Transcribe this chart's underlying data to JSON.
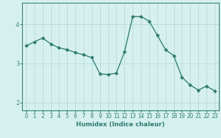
{
  "x": [
    0,
    1,
    2,
    3,
    4,
    5,
    6,
    7,
    8,
    9,
    10,
    11,
    12,
    13,
    14,
    15,
    16,
    17,
    18,
    19,
    20,
    21,
    22,
    23
  ],
  "y": [
    3.45,
    3.55,
    3.65,
    3.5,
    3.4,
    3.35,
    3.28,
    3.22,
    3.15,
    2.73,
    2.72,
    2.75,
    3.3,
    4.2,
    4.2,
    4.08,
    3.72,
    3.35,
    3.2,
    2.65,
    2.45,
    2.32,
    2.42,
    2.3
  ],
  "line_color": "#2e7d6e",
  "marker": "D",
  "markersize": 2.5,
  "linewidth": 1.0,
  "background_color": "#d6f0f0",
  "grid_color": "#b8d8d8",
  "xlabel": "Humidex (Indice chaleur)",
  "xlabel_fontsize": 6.5,
  "tick_fontsize": 5.5,
  "ylim": [
    1.8,
    4.55
  ],
  "xlim": [
    -0.5,
    23.5
  ],
  "yticks": [
    2,
    3,
    4
  ],
  "xticks": [
    0,
    1,
    2,
    3,
    4,
    5,
    6,
    7,
    8,
    9,
    10,
    11,
    12,
    13,
    14,
    15,
    16,
    17,
    18,
    19,
    20,
    21,
    22,
    23
  ]
}
